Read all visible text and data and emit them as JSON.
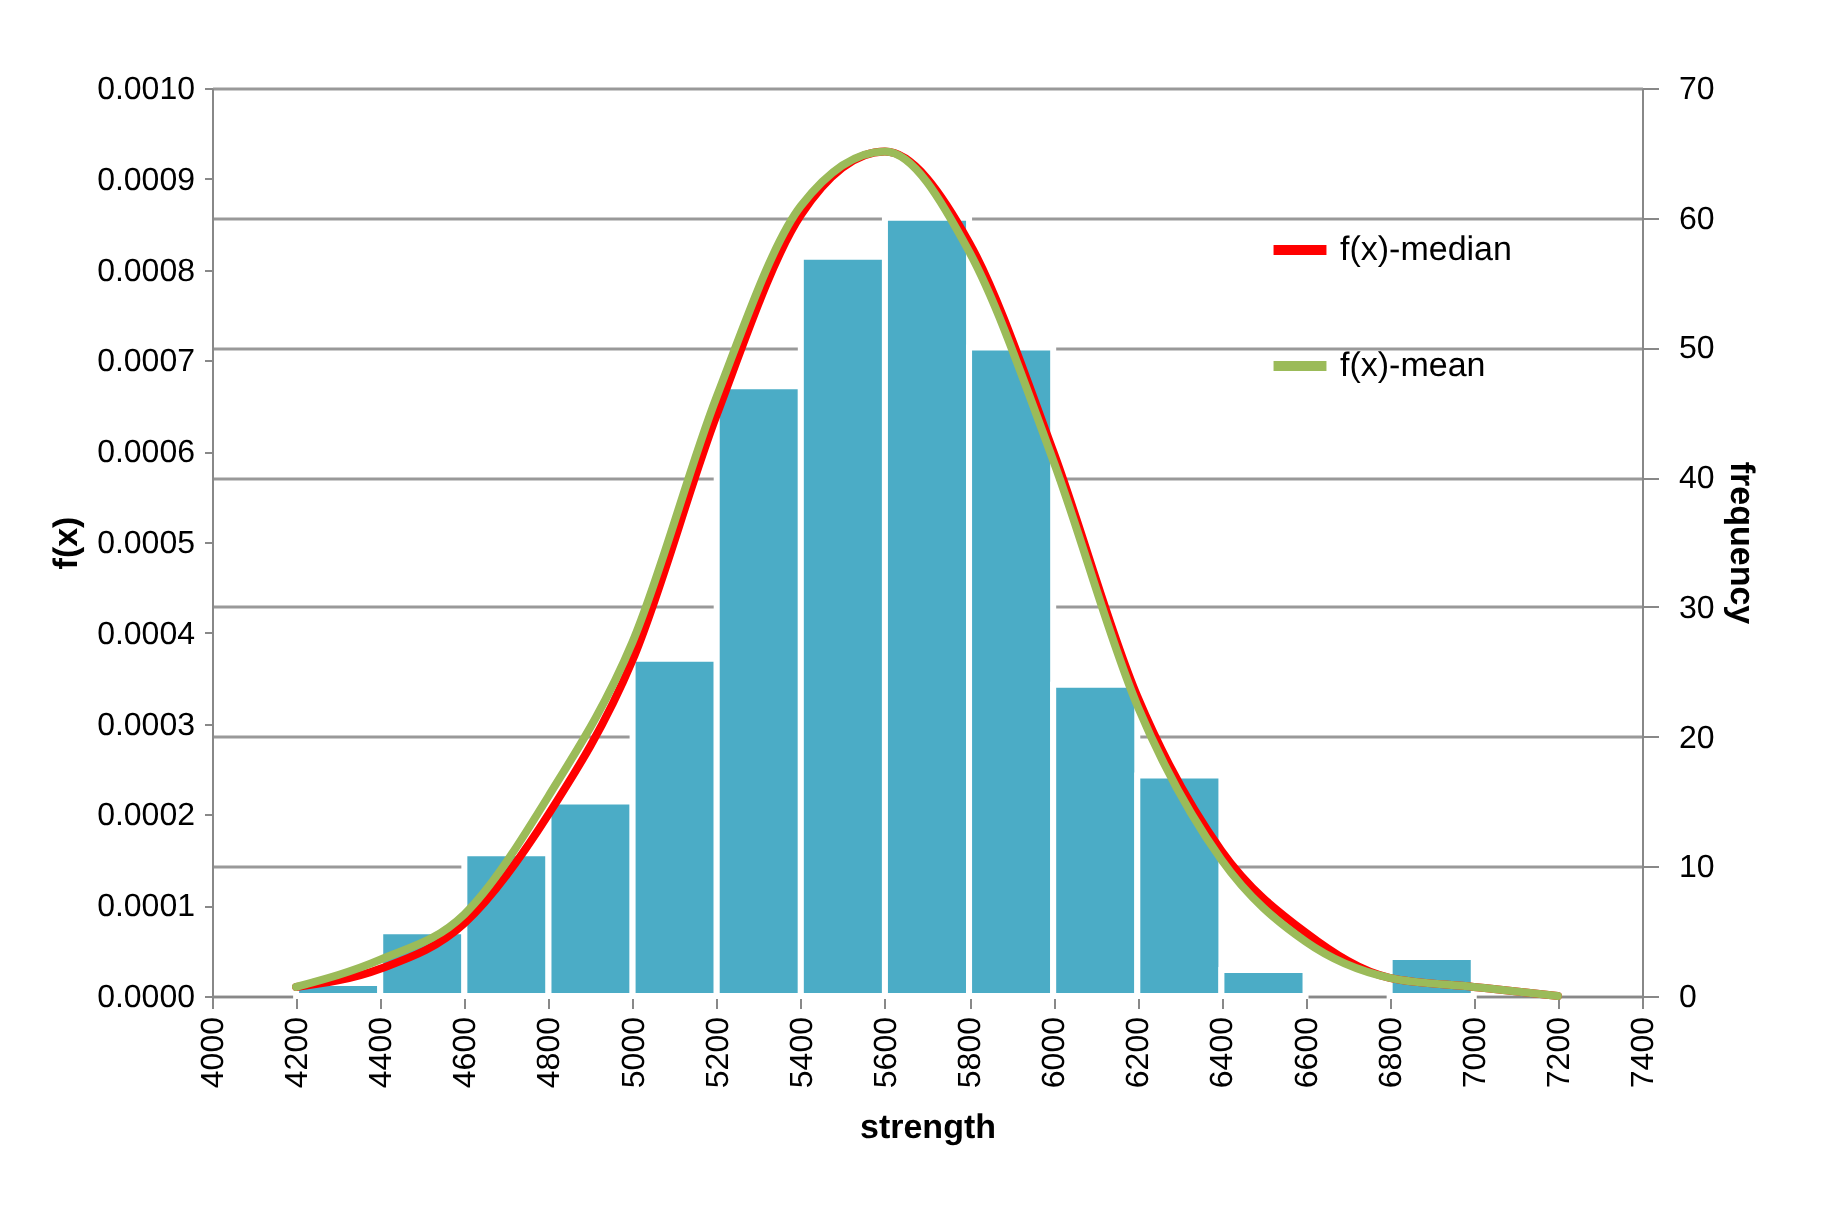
{
  "chart_data": {
    "type": "histogram",
    "xlabel": "strength",
    "ylabel": "f(x)",
    "y2label": "frequency",
    "bins": [
      4200,
      4400,
      4600,
      4800,
      5000,
      5200,
      5400,
      5600,
      5800,
      6000,
      6200,
      6400,
      6600,
      6800,
      7000
    ],
    "series": [
      {
        "type": "histogram",
        "axis": "y2",
        "color": "#4bacc6",
        "values": [
          1,
          5,
          11,
          15,
          26,
          47,
          57,
          60,
          50,
          24,
          17,
          2,
          0,
          3
        ]
      },
      {
        "type": "line",
        "name": "f(x)-median",
        "color": "#ff0000",
        "x": [
          4200,
          4400,
          4600,
          4800,
          5000,
          5200,
          5400,
          5600,
          5800,
          6000,
          6200,
          6400,
          6600,
          6800,
          7000,
          7200
        ],
        "values": [
          1e-05,
          3e-05,
          8e-05,
          0.0002,
          0.00037,
          0.00064,
          0.00086,
          0.00093,
          0.00083,
          0.0006,
          0.00033,
          0.00016,
          7e-05,
          2e-05,
          1e-05,
          0
        ]
      },
      {
        "type": "line",
        "name": "f(x)-mean",
        "color": "#9bbb59",
        "x": [
          4200,
          4400,
          4600,
          4800,
          5000,
          5200,
          5400,
          5600,
          5800,
          6000,
          6200,
          6400,
          6600,
          6800,
          7000,
          7200
        ],
        "values": [
          1e-05,
          4e-05,
          9e-05,
          0.00022,
          0.00039,
          0.00066,
          0.00087,
          0.00093,
          0.00082,
          0.00059,
          0.00032,
          0.00015,
          6e-05,
          2e-05,
          1e-05,
          0
        ]
      }
    ],
    "xlim": [
      4000,
      7400
    ],
    "xticks": [
      4000,
      4200,
      4400,
      4600,
      4800,
      5000,
      5200,
      5400,
      5600,
      5800,
      6000,
      6200,
      6400,
      6600,
      6800,
      7000,
      7200,
      7400
    ],
    "ylim": [
      0,
      0.001
    ],
    "yticks": [
      {
        "value": 0,
        "label": "0.0000"
      },
      {
        "value": 0.0001,
        "label": "0.0001"
      },
      {
        "value": 0.0002,
        "label": "0.0002"
      },
      {
        "value": 0.0003,
        "label": "0.0003"
      },
      {
        "value": 0.0004,
        "label": "0.0004"
      },
      {
        "value": 0.0005,
        "label": "0.0005"
      },
      {
        "value": 0.0006,
        "label": "0.0006"
      },
      {
        "value": 0.0007,
        "label": "0.0007"
      },
      {
        "value": 0.0008,
        "label": "0.0008"
      },
      {
        "value": 0.0009,
        "label": "0.0009"
      },
      {
        "value": 0.001,
        "label": "0.0010"
      }
    ],
    "y2lim": [
      0,
      70
    ],
    "y2ticks": [
      0,
      10,
      20,
      30,
      40,
      50,
      60,
      70
    ],
    "grid": "y",
    "legend": "top right",
    "marker": "none",
    "line_style": "solid"
  }
}
